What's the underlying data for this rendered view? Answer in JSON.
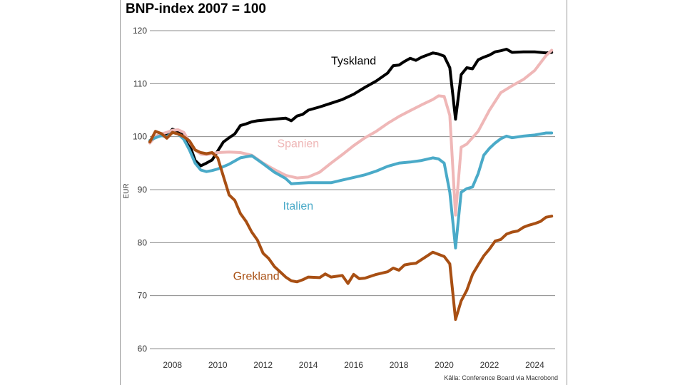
{
  "title": "BNP-index 2007 = 100",
  "source": "Källa: Conference Board via Macrobond",
  "chart_data": {
    "type": "line",
    "title": "BNP-index 2007 = 100",
    "xlabel": "",
    "ylabel": "EUR",
    "xlim": [
      2007.0,
      2024.9
    ],
    "ylim": [
      60,
      120
    ],
    "yticks": [
      60,
      70,
      80,
      90,
      100,
      110,
      120
    ],
    "xticks": [
      2008,
      2010,
      2012,
      2014,
      2016,
      2018,
      2020,
      2022,
      2024
    ],
    "grid": "horizontal",
    "legend": "inline labels",
    "series": [
      {
        "name": "Tyskland",
        "color": "#000000",
        "points": [
          [
            2007.0,
            99.0
          ],
          [
            2007.25,
            100.0
          ],
          [
            2007.5,
            100.5
          ],
          [
            2007.75,
            100.3
          ],
          [
            2008.0,
            101.4
          ],
          [
            2008.25,
            101.0
          ],
          [
            2008.5,
            100.3
          ],
          [
            2008.75,
            98.5
          ],
          [
            2009.0,
            95.5
          ],
          [
            2009.25,
            94.5
          ],
          [
            2009.5,
            95.0
          ],
          [
            2009.75,
            95.6
          ],
          [
            2010.0,
            97.3
          ],
          [
            2010.25,
            99.0
          ],
          [
            2010.5,
            99.8
          ],
          [
            2010.75,
            100.5
          ],
          [
            2011.0,
            102.1
          ],
          [
            2011.25,
            102.4
          ],
          [
            2011.5,
            102.8
          ],
          [
            2011.75,
            103.0
          ],
          [
            2012.0,
            103.1
          ],
          [
            2012.5,
            103.3
          ],
          [
            2013.0,
            103.5
          ],
          [
            2013.25,
            103.0
          ],
          [
            2013.5,
            103.9
          ],
          [
            2013.75,
            104.2
          ],
          [
            2014.0,
            105.0
          ],
          [
            2014.5,
            105.6
          ],
          [
            2015.0,
            106.3
          ],
          [
            2015.5,
            107.0
          ],
          [
            2016.0,
            108.0
          ],
          [
            2016.5,
            109.3
          ],
          [
            2017.0,
            110.5
          ],
          [
            2017.5,
            112.0
          ],
          [
            2017.75,
            113.4
          ],
          [
            2018.0,
            113.5
          ],
          [
            2018.25,
            114.2
          ],
          [
            2018.5,
            114.8
          ],
          [
            2018.75,
            114.4
          ],
          [
            2019.0,
            115.0
          ],
          [
            2019.25,
            115.4
          ],
          [
            2019.5,
            115.8
          ],
          [
            2019.75,
            115.6
          ],
          [
            2020.0,
            115.2
          ],
          [
            2020.25,
            113.0
          ],
          [
            2020.5,
            103.3
          ],
          [
            2020.75,
            111.7
          ],
          [
            2021.0,
            113.0
          ],
          [
            2021.25,
            112.8
          ],
          [
            2021.5,
            114.5
          ],
          [
            2021.75,
            115.0
          ],
          [
            2022.0,
            115.4
          ],
          [
            2022.25,
            116.0
          ],
          [
            2022.5,
            116.2
          ],
          [
            2022.75,
            116.5
          ],
          [
            2023.0,
            115.9
          ],
          [
            2023.5,
            116.0
          ],
          [
            2024.0,
            116.0
          ],
          [
            2024.5,
            115.8
          ],
          [
            2024.75,
            115.9
          ]
        ]
      },
      {
        "name": "Spanien",
        "color": "#efb7b7",
        "points": [
          [
            2007.0,
            98.8
          ],
          [
            2007.25,
            100.0
          ],
          [
            2007.5,
            100.5
          ],
          [
            2007.75,
            100.8
          ],
          [
            2008.0,
            101.2
          ],
          [
            2008.25,
            101.3
          ],
          [
            2008.5,
            100.8
          ],
          [
            2008.75,
            99.0
          ],
          [
            2009.0,
            97.5
          ],
          [
            2009.25,
            96.7
          ],
          [
            2009.5,
            96.6
          ],
          [
            2009.75,
            96.8
          ],
          [
            2010.0,
            97.0
          ],
          [
            2010.5,
            97.1
          ],
          [
            2011.0,
            97.0
          ],
          [
            2011.5,
            96.5
          ],
          [
            2012.0,
            95.0
          ],
          [
            2012.5,
            93.8
          ],
          [
            2013.0,
            92.7
          ],
          [
            2013.5,
            92.2
          ],
          [
            2014.0,
            92.4
          ],
          [
            2014.5,
            93.3
          ],
          [
            2015.0,
            95.0
          ],
          [
            2015.5,
            96.6
          ],
          [
            2016.0,
            98.3
          ],
          [
            2016.5,
            99.8
          ],
          [
            2017.0,
            101.0
          ],
          [
            2017.5,
            102.5
          ],
          [
            2018.0,
            103.8
          ],
          [
            2018.5,
            104.9
          ],
          [
            2019.0,
            106.0
          ],
          [
            2019.5,
            107.0
          ],
          [
            2019.75,
            107.7
          ],
          [
            2020.0,
            107.6
          ],
          [
            2020.25,
            104.0
          ],
          [
            2020.5,
            85.2
          ],
          [
            2020.75,
            98.0
          ],
          [
            2021.0,
            98.6
          ],
          [
            2021.5,
            101.0
          ],
          [
            2022.0,
            105.0
          ],
          [
            2022.5,
            108.3
          ],
          [
            2023.0,
            109.6
          ],
          [
            2023.5,
            110.8
          ],
          [
            2024.0,
            112.5
          ],
          [
            2024.5,
            115.3
          ],
          [
            2024.75,
            116.3
          ]
        ]
      },
      {
        "name": "Italien",
        "color": "#4aaac8",
        "points": [
          [
            2007.0,
            99.3
          ],
          [
            2007.25,
            99.8
          ],
          [
            2007.5,
            100.2
          ],
          [
            2007.75,
            100.0
          ],
          [
            2008.0,
            100.8
          ],
          [
            2008.25,
            100.5
          ],
          [
            2008.5,
            99.5
          ],
          [
            2008.75,
            97.5
          ],
          [
            2009.0,
            95.0
          ],
          [
            2009.25,
            93.7
          ],
          [
            2009.5,
            93.4
          ],
          [
            2009.75,
            93.6
          ],
          [
            2010.0,
            93.9
          ],
          [
            2010.5,
            94.8
          ],
          [
            2011.0,
            96.0
          ],
          [
            2011.5,
            96.4
          ],
          [
            2012.0,
            94.9
          ],
          [
            2012.5,
            93.3
          ],
          [
            2013.0,
            92.1
          ],
          [
            2013.25,
            91.1
          ],
          [
            2013.5,
            91.2
          ],
          [
            2014.0,
            91.3
          ],
          [
            2014.5,
            91.3
          ],
          [
            2015.0,
            91.3
          ],
          [
            2015.5,
            91.8
          ],
          [
            2016.0,
            92.3
          ],
          [
            2016.5,
            92.8
          ],
          [
            2017.0,
            93.5
          ],
          [
            2017.5,
            94.4
          ],
          [
            2018.0,
            95.0
          ],
          [
            2018.5,
            95.2
          ],
          [
            2019.0,
            95.5
          ],
          [
            2019.5,
            96.0
          ],
          [
            2019.75,
            95.8
          ],
          [
            2020.0,
            95.0
          ],
          [
            2020.25,
            89.5
          ],
          [
            2020.5,
            79.0
          ],
          [
            2020.75,
            89.5
          ],
          [
            2021.0,
            90.2
          ],
          [
            2021.25,
            90.5
          ],
          [
            2021.5,
            93.0
          ],
          [
            2021.75,
            96.5
          ],
          [
            2022.0,
            97.8
          ],
          [
            2022.25,
            98.8
          ],
          [
            2022.5,
            99.6
          ],
          [
            2022.75,
            100.1
          ],
          [
            2023.0,
            99.8
          ],
          [
            2023.5,
            100.1
          ],
          [
            2024.0,
            100.3
          ],
          [
            2024.5,
            100.7
          ],
          [
            2024.75,
            100.7
          ]
        ]
      },
      {
        "name": "Grekland",
        "color": "#a84f13",
        "points": [
          [
            2007.0,
            99.0
          ],
          [
            2007.25,
            101.0
          ],
          [
            2007.5,
            100.6
          ],
          [
            2007.75,
            99.7
          ],
          [
            2008.0,
            100.8
          ],
          [
            2008.25,
            100.5
          ],
          [
            2008.5,
            100.0
          ],
          [
            2008.75,
            99.2
          ],
          [
            2009.0,
            97.5
          ],
          [
            2009.25,
            97.0
          ],
          [
            2009.5,
            96.8
          ],
          [
            2009.75,
            97.0
          ],
          [
            2010.0,
            96.0
          ],
          [
            2010.25,
            92.5
          ],
          [
            2010.5,
            89.0
          ],
          [
            2010.75,
            88.0
          ],
          [
            2011.0,
            85.5
          ],
          [
            2011.25,
            84.0
          ],
          [
            2011.5,
            82.0
          ],
          [
            2011.75,
            80.5
          ],
          [
            2012.0,
            78.0
          ],
          [
            2012.25,
            77.0
          ],
          [
            2012.5,
            75.5
          ],
          [
            2012.75,
            74.5
          ],
          [
            2013.0,
            73.5
          ],
          [
            2013.25,
            72.8
          ],
          [
            2013.5,
            72.6
          ],
          [
            2013.75,
            73.0
          ],
          [
            2014.0,
            73.5
          ],
          [
            2014.5,
            73.4
          ],
          [
            2014.75,
            74.1
          ],
          [
            2015.0,
            73.5
          ],
          [
            2015.5,
            73.8
          ],
          [
            2015.75,
            72.3
          ],
          [
            2016.0,
            74.0
          ],
          [
            2016.25,
            73.2
          ],
          [
            2016.5,
            73.3
          ],
          [
            2017.0,
            74.0
          ],
          [
            2017.5,
            74.5
          ],
          [
            2017.75,
            75.2
          ],
          [
            2018.0,
            74.8
          ],
          [
            2018.25,
            75.8
          ],
          [
            2018.5,
            76.0
          ],
          [
            2018.75,
            76.1
          ],
          [
            2019.0,
            76.8
          ],
          [
            2019.25,
            77.5
          ],
          [
            2019.5,
            78.2
          ],
          [
            2019.75,
            77.8
          ],
          [
            2020.0,
            77.4
          ],
          [
            2020.25,
            76.0
          ],
          [
            2020.5,
            65.5
          ],
          [
            2020.75,
            69.0
          ],
          [
            2021.0,
            71.0
          ],
          [
            2021.25,
            74.0
          ],
          [
            2021.5,
            75.8
          ],
          [
            2021.75,
            77.5
          ],
          [
            2022.0,
            78.8
          ],
          [
            2022.25,
            80.3
          ],
          [
            2022.5,
            80.6
          ],
          [
            2022.75,
            81.6
          ],
          [
            2023.0,
            82.0
          ],
          [
            2023.25,
            82.2
          ],
          [
            2023.5,
            82.9
          ],
          [
            2023.75,
            83.3
          ],
          [
            2024.0,
            83.6
          ],
          [
            2024.25,
            84.0
          ],
          [
            2024.5,
            84.8
          ],
          [
            2024.75,
            85.0
          ]
        ]
      }
    ],
    "annotations": [
      {
        "series": "Tyskland",
        "text": "Tyskland",
        "x": 2016.0,
        "y": 113.6,
        "color": "#000000"
      },
      {
        "series": "Spanien",
        "text": "Spanien",
        "x": 2013.55,
        "y": 98.0,
        "color": "#efb7b7"
      },
      {
        "series": "Italien",
        "text": "Italien",
        "x": 2013.55,
        "y": 86.2,
        "color": "#4aaac8"
      },
      {
        "series": "Grekland",
        "text": "Grekland",
        "x": 2011.7,
        "y": 73.0,
        "color": "#a84f13"
      }
    ]
  }
}
